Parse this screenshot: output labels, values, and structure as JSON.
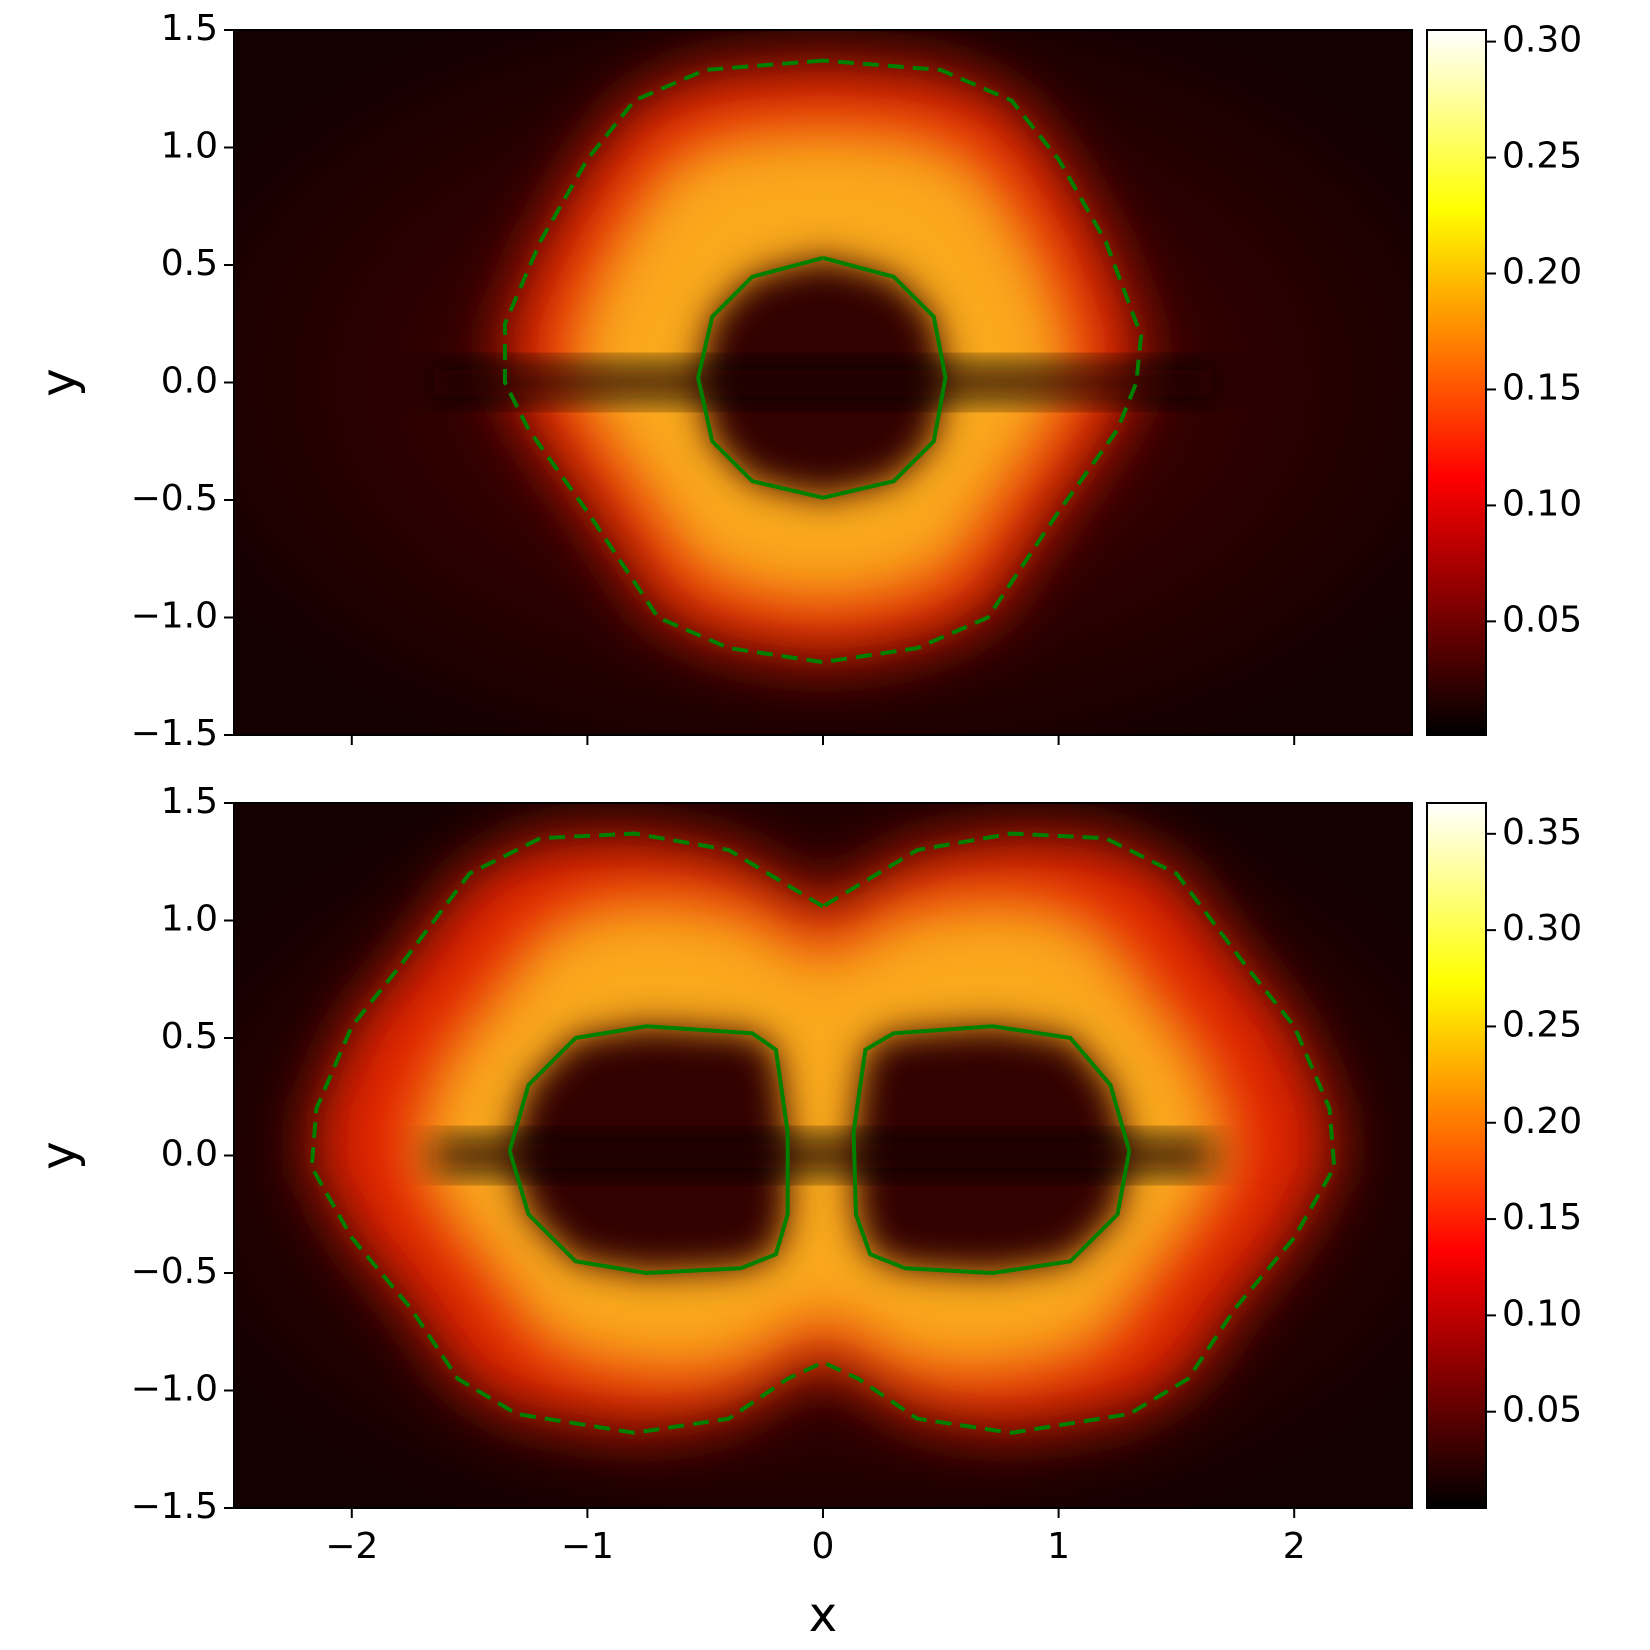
{
  "chart_data": [
    {
      "type": "heatmap",
      "ylabel": "y",
      "xlim": [
        -2.5,
        2.5
      ],
      "ylim": [
        -1.5,
        1.5
      ],
      "xticks": [
        -2,
        -1,
        0,
        1,
        2
      ],
      "show_xticklabels": false,
      "yticks": [
        {
          "value": -1.5,
          "label": "−1.5"
        },
        {
          "value": -1.0,
          "label": "−1.0"
        },
        {
          "value": -0.5,
          "label": "−0.5"
        },
        {
          "value": 0.0,
          "label": "0.0"
        },
        0.5,
        {
          "value": 1.0,
          "label": "1.0"
        },
        1.5
      ],
      "colorbar": {
        "cmap": "hot",
        "clim": [
          0.001,
          0.305
        ],
        "ticks": [
          0.05,
          {
            "value": 0.1,
            "label": "0.10"
          },
          0.15,
          {
            "value": 0.2,
            "label": "0.20"
          },
          0.25,
          {
            "value": 0.3,
            "label": "0.30"
          }
        ]
      },
      "contours": [
        {
          "style": "dashed",
          "color": "#008000",
          "x": [
            0,
            -0.5,
            -0.8,
            -1.0,
            -1.2,
            -1.35,
            -1.35,
            -1.25,
            -1.0,
            -0.8,
            -0.7,
            -0.4,
            0,
            0.4,
            0.7,
            0.8,
            1.0,
            1.25,
            1.33,
            1.35,
            1.2,
            1.0,
            0.8,
            0.5,
            0
          ],
          "y": [
            1.37,
            1.33,
            1.2,
            0.95,
            0.6,
            0.25,
            0.0,
            -0.2,
            -0.55,
            -0.85,
            -1.0,
            -1.13,
            -1.19,
            -1.13,
            -1.0,
            -0.85,
            -0.55,
            -0.2,
            0.0,
            0.2,
            0.6,
            0.95,
            1.2,
            1.33,
            1.37
          ]
        },
        {
          "style": "solid",
          "color": "#008000",
          "x": [
            0,
            -0.3,
            -0.47,
            -0.53,
            -0.47,
            -0.3,
            0,
            0.3,
            0.47,
            0.52,
            0.47,
            0.3,
            0
          ],
          "y": [
            0.53,
            0.45,
            0.28,
            0.02,
            -0.25,
            -0.42,
            -0.49,
            -0.42,
            -0.25,
            0.02,
            0.28,
            0.45,
            0.53
          ]
        }
      ]
    },
    {
      "type": "heatmap",
      "xlabel": "x",
      "ylabel": "y",
      "xlim": [
        -2.5,
        2.5
      ],
      "ylim": [
        -1.5,
        1.5
      ],
      "xticks": [
        {
          "value": -2,
          "label": "−2"
        },
        {
          "value": -1,
          "label": "−1"
        },
        0,
        1,
        2
      ],
      "show_xticklabels": true,
      "yticks": [
        {
          "value": -1.5,
          "label": "−1.5"
        },
        {
          "value": -1.0,
          "label": "−1.0"
        },
        {
          "value": -0.5,
          "label": "−0.5"
        },
        {
          "value": 0.0,
          "label": "0.0"
        },
        0.5,
        {
          "value": 1.0,
          "label": "1.0"
        },
        1.5
      ],
      "colorbar": {
        "cmap": "hot",
        "clim": [
          0.0,
          0.366
        ],
        "ticks": [
          0.05,
          {
            "value": 0.1,
            "label": "0.10"
          },
          0.15,
          {
            "value": 0.2,
            "label": "0.20"
          },
          0.25,
          {
            "value": 0.3,
            "label": "0.30"
          },
          0.35
        ]
      },
      "contours": [
        {
          "style": "dashed",
          "color": "#008000",
          "x": [
            0,
            -0.15,
            -0.4,
            -0.8,
            -1.2,
            -1.5,
            -1.8,
            -2.0,
            -2.15,
            -2.17,
            -2.0,
            -1.75,
            -1.55,
            -1.3,
            -0.8,
            -0.4,
            -0.15,
            0,
            0.15,
            0.4,
            0.8,
            1.3,
            1.55,
            1.75,
            2.0,
            2.17,
            2.15,
            2.0,
            1.8,
            1.5,
            1.2,
            0.8,
            0.4,
            0.15,
            0
          ],
          "y": [
            1.06,
            1.15,
            1.3,
            1.37,
            1.35,
            1.2,
            0.8,
            0.55,
            0.2,
            -0.05,
            -0.35,
            -0.65,
            -0.95,
            -1.1,
            -1.18,
            -1.12,
            -0.95,
            -0.88,
            -0.95,
            -1.12,
            -1.18,
            -1.1,
            -0.95,
            -0.65,
            -0.35,
            -0.05,
            0.2,
            0.55,
            0.8,
            1.2,
            1.35,
            1.37,
            1.3,
            1.15,
            1.06
          ]
        },
        {
          "style": "solid",
          "color": "#008000",
          "x": [
            -1.33,
            -1.25,
            -1.05,
            -0.75,
            -0.3,
            -0.2,
            -0.15,
            -0.15,
            -0.2,
            -0.35,
            -0.75,
            -1.05,
            -1.25,
            -1.33
          ],
          "y": [
            0.02,
            0.3,
            0.5,
            0.55,
            0.52,
            0.45,
            0.1,
            -0.25,
            -0.42,
            -0.48,
            -0.5,
            -0.45,
            -0.25,
            0.02
          ]
        },
        {
          "style": "solid",
          "color": "#008000",
          "x": [
            1.3,
            1.22,
            1.05,
            0.72,
            0.3,
            0.18,
            0.13,
            0.14,
            0.2,
            0.35,
            0.72,
            1.05,
            1.25,
            1.3
          ],
          "y": [
            0.02,
            0.3,
            0.5,
            0.55,
            0.52,
            0.45,
            0.1,
            -0.25,
            -0.42,
            -0.48,
            -0.5,
            -0.45,
            -0.25,
            0.02
          ]
        }
      ]
    }
  ]
}
